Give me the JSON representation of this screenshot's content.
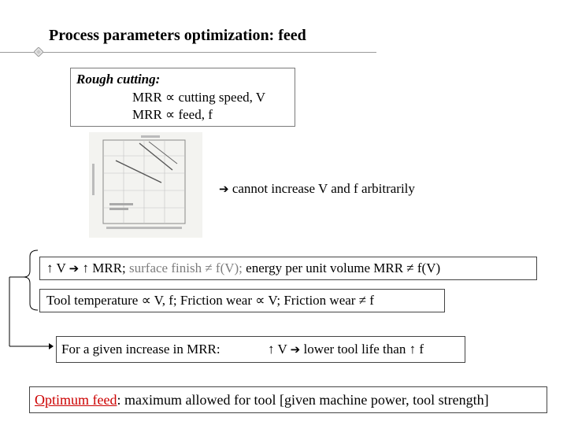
{
  "title": "Process parameters optimization: feed",
  "rough_box": {
    "heading": "Rough cutting:",
    "line1": "MRR ∝ cutting speed, V",
    "line2": "MRR ∝ feed, f"
  },
  "conclusion": "cannot increase V and f arbitrarily",
  "v_box": {
    "part1": "↑ V ",
    "part2": " ↑ MRR; ",
    "part3_grey": "surface finish ≠ f(V);",
    "part4": " energy per unit volume MRR ≠ f(V)"
  },
  "temp_box": "Tool temperature ∝ V, f; Friction wear ∝ V; Friction wear ≠ f",
  "given_box": {
    "left": "For a given increase in MRR:",
    "right_part1": "↑ V ",
    "right_part2": " lower tool life than ↑ f"
  },
  "optimum_box": {
    "label": "Optimum feed",
    "text": ": maximum allowed for tool [given machine power, tool strength]"
  },
  "icons": {
    "arrow": "right-arrow-icon",
    "title_bullet": "diamond-bullet-icon",
    "bracket": "connector-bracket-icon"
  },
  "colors": {
    "optimum_label": "#cc0000",
    "muted_text": "#7d7d7d"
  }
}
